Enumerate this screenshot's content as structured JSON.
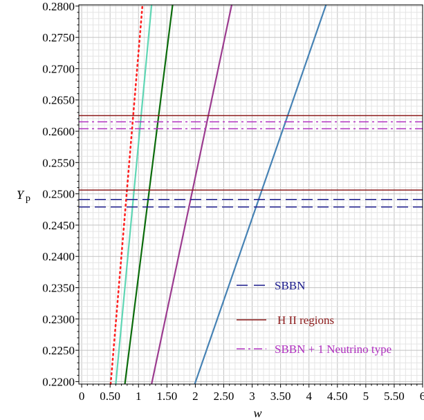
{
  "chart_data": {
    "type": "line",
    "xlabel": "w",
    "ylabel_main": "Y",
    "ylabel_sub": "p",
    "xlim": [
      -0.05,
      6
    ],
    "ylim": [
      0.2196,
      0.2802
    ],
    "x_ticks": [
      0,
      0.5,
      1,
      1.5,
      2,
      2.5,
      3,
      3.5,
      4,
      4.5,
      5,
      5.5,
      6
    ],
    "x_tick_labels": [
      "0",
      "0.50",
      "1",
      "1.50",
      "2",
      "2.50",
      "3",
      "3.50",
      "4",
      "4.50",
      "5",
      "5.50",
      "6"
    ],
    "y_ticks": [
      0.22,
      0.225,
      0.23,
      0.235,
      0.24,
      0.245,
      0.25,
      0.255,
      0.26,
      0.265,
      0.27,
      0.275,
      0.28
    ],
    "y_tick_labels": [
      "0.2200",
      "0.2250",
      "0.2300",
      "0.2350",
      "0.2400",
      "0.2450",
      "0.2500",
      "0.2550",
      "0.2600",
      "0.2650",
      "0.2700",
      "0.2750",
      "0.2800"
    ],
    "grid": true,
    "curves": [
      {
        "color": "#ff2020",
        "style": "dotted",
        "points": [
          [
            0.51,
            0.2196
          ],
          [
            1.07,
            0.2802
          ]
        ]
      },
      {
        "color": "#5fd6b4",
        "style": "solid",
        "points": [
          [
            0.6,
            0.2196
          ],
          [
            1.23,
            0.2802
          ]
        ]
      },
      {
        "color": "#0a6b0a",
        "style": "solid",
        "points": [
          [
            0.76,
            0.2196
          ],
          [
            1.6,
            0.2802
          ]
        ]
      },
      {
        "color": "#9b3b8f",
        "style": "solid",
        "points": [
          [
            1.23,
            0.2196
          ],
          [
            2.64,
            0.2802
          ]
        ]
      },
      {
        "color": "#4682b4",
        "style": "solid",
        "points": [
          [
            1.99,
            0.2196
          ],
          [
            4.3,
            0.2802
          ]
        ]
      }
    ],
    "hlines": [
      {
        "group": "SBBN",
        "y": 0.2491,
        "color": "#1a1a8c",
        "style": "dash"
      },
      {
        "group": "SBBN",
        "y": 0.2479,
        "color": "#1a1a8c",
        "style": "dash"
      },
      {
        "group": "HII",
        "y": 0.2625,
        "color": "#8b1a1a",
        "style": "solid"
      },
      {
        "group": "HII",
        "y": 0.2506,
        "color": "#8b1a1a",
        "style": "solid"
      },
      {
        "group": "SBBN1",
        "y": 0.2615,
        "color": "#b030c0",
        "style": "dashdot"
      },
      {
        "group": "SBBN1",
        "y": 0.2604,
        "color": "#b030c0",
        "style": "dashdot"
      }
    ],
    "legend": {
      "placement": "bottom-right",
      "entries": [
        {
          "label": "SBBN",
          "color": "#1a1a8c",
          "style": "dash"
        },
        {
          "label": "H II regions",
          "color": "#8b1a1a",
          "style": "solid"
        },
        {
          "label": "SBBN + 1 Neutrino type",
          "color": "#b030c0",
          "style": "dashdot"
        }
      ]
    }
  }
}
